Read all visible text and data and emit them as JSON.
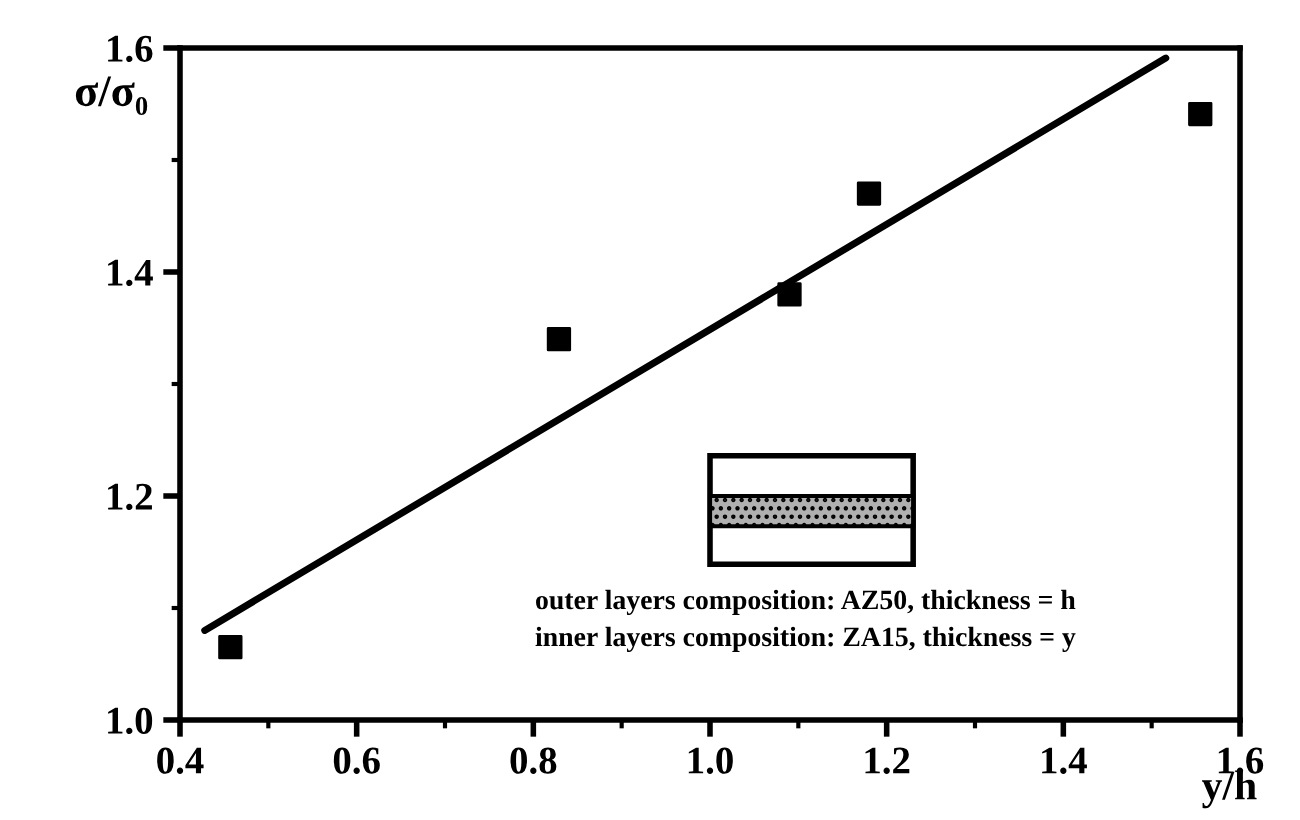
{
  "chart_data": {
    "type": "scatter",
    "xlabel": "y/h",
    "ylabel": "σ/σ₀",
    "xlim": [
      0.4,
      1.6
    ],
    "ylim": [
      1.0,
      1.6
    ],
    "xticks": [
      {
        "value": 0.4,
        "label": "0.4"
      },
      {
        "value": 0.6,
        "label": "0.6"
      },
      {
        "value": 0.8,
        "label": "0.8"
      },
      {
        "value": 1.0,
        "label": "1.0"
      },
      {
        "value": 1.2,
        "label": "1.2"
      },
      {
        "value": 1.4,
        "label": "1.4"
      },
      {
        "value": 1.6,
        "label": "1.6"
      }
    ],
    "yticks": [
      {
        "value": 1.0,
        "label": "1.0"
      },
      {
        "value": 1.2,
        "label": "1.2"
      },
      {
        "value": 1.4,
        "label": "1.4"
      },
      {
        "value": 1.6,
        "label": "1.6"
      }
    ],
    "grid": false,
    "marker": "square",
    "series": [
      {
        "color": "#000000",
        "x": [
          0.457,
          0.829,
          1.09,
          1.18,
          1.555
        ],
        "values": [
          1.065,
          1.34,
          1.38,
          1.47,
          1.541
        ]
      },
      {
        "type": "line",
        "color": "#000000",
        "marker": "none",
        "line_style": "solid",
        "x": [
          0.428,
          1.516
        ],
        "values": [
          1.08,
          1.591
        ]
      }
    ],
    "annotations": [
      "outer layers composition: AZ50, thickness = h",
      "inner layers composition: ZA15, thickness = y"
    ]
  }
}
